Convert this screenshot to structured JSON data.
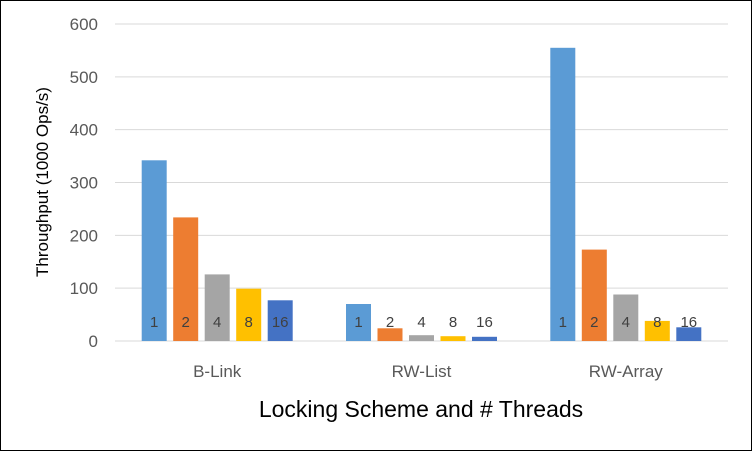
{
  "chart_data": {
    "type": "bar",
    "categories": [
      "B-Link",
      "RW-List",
      "RW-Array"
    ],
    "series": [
      {
        "name": "1",
        "values": [
          342,
          70,
          555
        ],
        "color": "#5B9BD5"
      },
      {
        "name": "2",
        "values": [
          234,
          24,
          173
        ],
        "color": "#ED7D31"
      },
      {
        "name": "4",
        "values": [
          126,
          11,
          88
        ],
        "color": "#A5A5A5"
      },
      {
        "name": "8",
        "values": [
          99,
          9,
          38
        ],
        "color": "#FFC000"
      },
      {
        "name": "16",
        "values": [
          77,
          8,
          26
        ],
        "color": "#4472C4"
      }
    ],
    "xlabel": "Locking Scheme and # Threads",
    "ylabel": "Throughput (1000  Ops/s)",
    "ylim": [
      0,
      600
    ],
    "yticks": [
      "0",
      "100",
      "200",
      "300",
      "400",
      "500",
      "600"
    ],
    "grid": true,
    "legend": "none"
  }
}
